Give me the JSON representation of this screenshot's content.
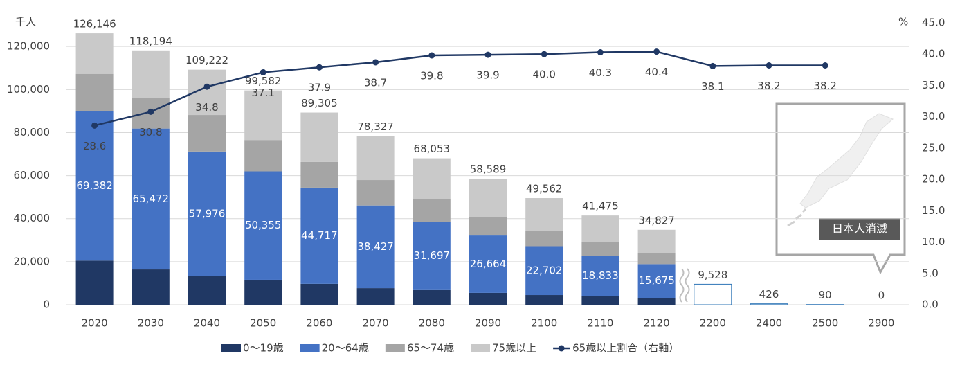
{
  "chart_data": {
    "type": "bar",
    "y_unit": "千人",
    "y2_unit": "%",
    "categories": [
      "2020",
      "2030",
      "2040",
      "2050",
      "2060",
      "2070",
      "2080",
      "2090",
      "2100",
      "2110",
      "2120",
      "2200",
      "2400",
      "2500",
      "2900"
    ],
    "series": [
      {
        "name": "0〜19歳",
        "color": "#203864",
        "values": [
          20500,
          16400,
          13200,
          11600,
          9700,
          7700,
          6800,
          5500,
          4500,
          3900,
          3200,
          null,
          null,
          null,
          null
        ]
      },
      {
        "name": "20〜64歳",
        "color": "#4472c4",
        "values": [
          69382,
          65472,
          57976,
          50355,
          44717,
          38427,
          31697,
          26664,
          22702,
          18833,
          15675,
          null,
          null,
          null,
          null
        ],
        "value_labels": [
          "69,382",
          "65,472",
          "57,976",
          "50,355",
          "44,717",
          "38,427",
          "31,697",
          "26,664",
          "22,702",
          "18,833",
          "15,675",
          null,
          null,
          null,
          null
        ]
      },
      {
        "name": "65〜74歳",
        "color": "#a5a5a5",
        "values": [
          17400,
          14300,
          17000,
          14600,
          11900,
          11800,
          10700,
          8700,
          7200,
          6300,
          5200,
          null,
          null,
          null,
          null
        ]
      },
      {
        "name": "75歳以上",
        "color": "#c9c9c9",
        "values": [
          18864,
          22022,
          21046,
          23027,
          22988,
          20400,
          18856,
          17725,
          15160,
          12442,
          10752,
          null,
          null,
          null,
          null
        ]
      },
      {
        "name": "65歳以上割合（右軸）",
        "type": "line",
        "axis": "y2",
        "color": "#203864",
        "values": [
          28.6,
          30.8,
          34.8,
          37.1,
          37.9,
          38.7,
          39.8,
          39.9,
          40.0,
          40.3,
          40.4,
          38.1,
          38.2,
          38.2,
          null
        ],
        "value_labels": [
          "28.6",
          "30.8",
          "34.8",
          "37.1",
          "37.9",
          "38.7",
          "39.8",
          "39.9",
          "40.0",
          "40.3",
          "40.4",
          "38.1",
          "38.2",
          "38.2",
          null
        ]
      }
    ],
    "totals": [
      126146,
      118194,
      109222,
      99582,
      89305,
      78327,
      68053,
      58589,
      49562,
      41475,
      34827,
      9528,
      426,
      90,
      0
    ],
    "total_labels": [
      "126,146",
      "118,194",
      "109,222",
      "99,582",
      "89,305",
      "78,327",
      "68,053",
      "58,589",
      "49,562",
      "41,475",
      "34,827",
      "9,528",
      "426",
      "90",
      "0"
    ],
    "outline_color": "#2e75b6",
    "ylim": [
      0,
      131000
    ],
    "yticks": [
      0,
      {
        "value": 20000,
        "label": "20,000"
      },
      {
        "value": 40000,
        "label": "40,000"
      },
      {
        "value": 60000,
        "label": "60,000"
      },
      {
        "value": 80000,
        "label": "80,000"
      },
      {
        "value": 100000,
        "label": "100,000"
      },
      {
        "value": 120000,
        "label": "120,000"
      }
    ],
    "y2lim": [
      0,
      45
    ],
    "y2ticks": [
      {
        "value": 0,
        "label": "0.0"
      },
      {
        "value": 5,
        "label": "5.0"
      },
      {
        "value": 10,
        "label": "10.0"
      },
      {
        "value": 15,
        "label": "15.0"
      },
      {
        "value": 20,
        "label": "20.0"
      },
      {
        "value": 25,
        "label": "25.0"
      },
      {
        "value": 30,
        "label": "30.0"
      },
      {
        "value": 35,
        "label": "35.0"
      },
      {
        "value": 40,
        "label": "40.0"
      },
      {
        "value": 45,
        "label": "45.0"
      }
    ],
    "grid": true,
    "legend": "bottom",
    "annotation": "日本人消滅"
  }
}
